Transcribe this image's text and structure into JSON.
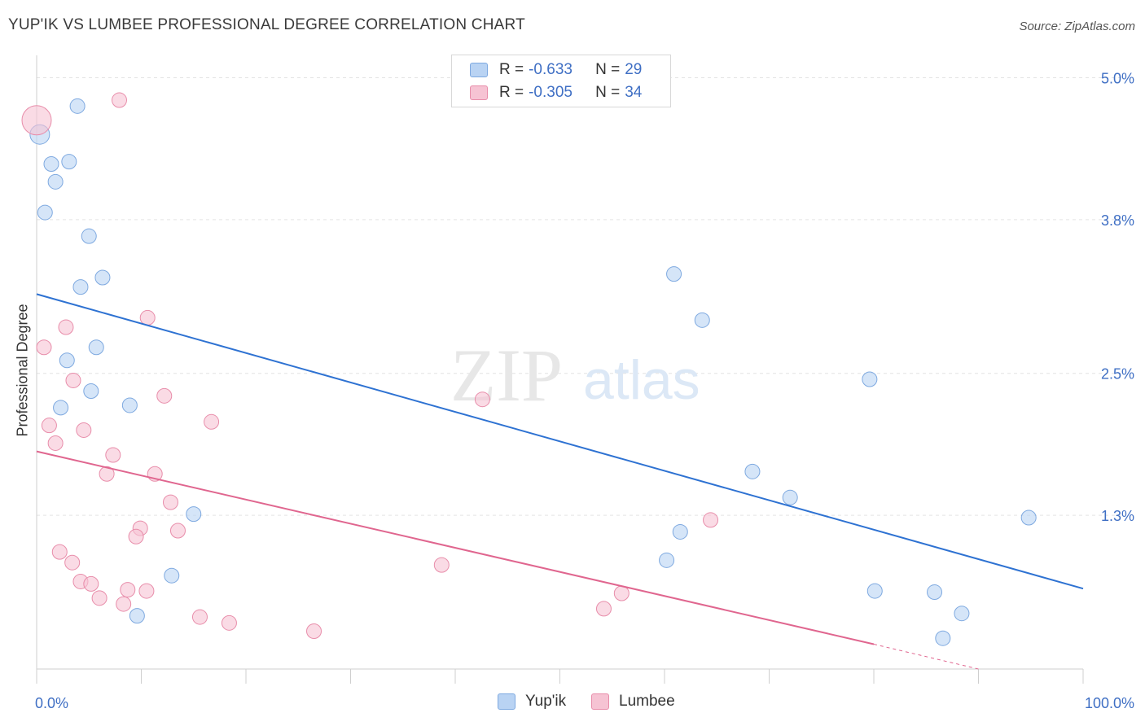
{
  "title": "YUP'IK VS LUMBEE PROFESSIONAL DEGREE CORRELATION CHART",
  "source": "Source: ZipAtlas.com",
  "watermark": {
    "part1": "ZIP",
    "part2": "atlas"
  },
  "colors": {
    "yupik_fill": "#b9d3f3",
    "yupik_stroke": "#7ea9e0",
    "yupik_line": "#2e72d2",
    "lumbee_fill": "#f6c3d3",
    "lumbee_stroke": "#e88daa",
    "lumbee_line": "#e0668f",
    "axis_label": "#3f6fc4",
    "grid": "#e3e3e3"
  },
  "legend": {
    "rows": [
      {
        "r_label": "R =",
        "r_value": "-0.633",
        "n_label": "N =",
        "n_value": "29"
      },
      {
        "r_label": "R =",
        "r_value": "-0.305",
        "n_label": "N =",
        "n_value": "34"
      }
    ]
  },
  "chart_data": {
    "type": "scatter",
    "title": "YUP'IK VS LUMBEE PROFESSIONAL DEGREE CORRELATION CHART",
    "xlabel": "",
    "ylabel": "Professional Degree",
    "xlim": [
      0,
      100
    ],
    "ylim": [
      0,
      5.12
    ],
    "x_tick_labels": [
      "0.0%",
      "100.0%"
    ],
    "y_ticks": [
      1.3,
      2.5,
      3.8,
      5.0
    ],
    "y_tick_labels": [
      "1.3%",
      "2.5%",
      "3.8%",
      "5.0%"
    ],
    "grid": true,
    "series": [
      {
        "name": "Yup'ik",
        "r": -0.633,
        "n": 29,
        "trend": {
          "x0": 0,
          "y0": 3.17,
          "x1": 100,
          "y1": 0.68
        },
        "points": [
          {
            "x": 0.3,
            "y": 4.52,
            "s": 12
          },
          {
            "x": 1.4,
            "y": 4.27,
            "s": 9
          },
          {
            "x": 1.8,
            "y": 4.12,
            "s": 9
          },
          {
            "x": 3.1,
            "y": 4.29,
            "s": 9
          },
          {
            "x": 3.9,
            "y": 4.76,
            "s": 9
          },
          {
            "x": 0.8,
            "y": 3.86,
            "s": 9
          },
          {
            "x": 5.0,
            "y": 3.66,
            "s": 9
          },
          {
            "x": 4.2,
            "y": 3.23,
            "s": 9
          },
          {
            "x": 6.3,
            "y": 3.31,
            "s": 9
          },
          {
            "x": 2.9,
            "y": 2.61,
            "s": 9
          },
          {
            "x": 5.7,
            "y": 2.72,
            "s": 9
          },
          {
            "x": 5.2,
            "y": 2.35,
            "s": 9
          },
          {
            "x": 2.3,
            "y": 2.21,
            "s": 9
          },
          {
            "x": 8.9,
            "y": 2.23,
            "s": 9
          },
          {
            "x": 15.0,
            "y": 1.31,
            "s": 9
          },
          {
            "x": 12.9,
            "y": 0.79,
            "s": 9
          },
          {
            "x": 9.6,
            "y": 0.45,
            "s": 9
          },
          {
            "x": 60.9,
            "y": 3.34,
            "s": 9
          },
          {
            "x": 63.6,
            "y": 2.95,
            "s": 9
          },
          {
            "x": 79.6,
            "y": 2.45,
            "s": 9
          },
          {
            "x": 68.4,
            "y": 1.67,
            "s": 9
          },
          {
            "x": 72.0,
            "y": 1.45,
            "s": 9
          },
          {
            "x": 61.5,
            "y": 1.16,
            "s": 9
          },
          {
            "x": 60.2,
            "y": 0.92,
            "s": 9
          },
          {
            "x": 80.1,
            "y": 0.66,
            "s": 9
          },
          {
            "x": 85.8,
            "y": 0.65,
            "s": 9
          },
          {
            "x": 88.4,
            "y": 0.47,
            "s": 9
          },
          {
            "x": 86.6,
            "y": 0.26,
            "s": 9
          },
          {
            "x": 94.8,
            "y": 1.28,
            "s": 9
          }
        ]
      },
      {
        "name": "Lumbee",
        "r": -0.305,
        "n": 34,
        "trend": {
          "x0": 0,
          "y0": 1.84,
          "x1": 80,
          "y1": 0.21,
          "dash_to_x": 90,
          "dash_to_y": 0.0
        },
        "points": [
          {
            "x": 0.0,
            "y": 4.64,
            "s": 18
          },
          {
            "x": 7.9,
            "y": 4.81,
            "s": 9
          },
          {
            "x": 0.7,
            "y": 2.72,
            "s": 9
          },
          {
            "x": 2.8,
            "y": 2.89,
            "s": 9
          },
          {
            "x": 3.5,
            "y": 2.44,
            "s": 9
          },
          {
            "x": 1.2,
            "y": 2.06,
            "s": 9
          },
          {
            "x": 1.8,
            "y": 1.91,
            "s": 9
          },
          {
            "x": 4.5,
            "y": 2.02,
            "s": 9
          },
          {
            "x": 7.3,
            "y": 1.81,
            "s": 9
          },
          {
            "x": 6.7,
            "y": 1.65,
            "s": 9
          },
          {
            "x": 10.6,
            "y": 2.97,
            "s": 9
          },
          {
            "x": 12.2,
            "y": 2.31,
            "s": 9
          },
          {
            "x": 16.7,
            "y": 2.09,
            "s": 9
          },
          {
            "x": 11.3,
            "y": 1.65,
            "s": 9
          },
          {
            "x": 12.8,
            "y": 1.41,
            "s": 9
          },
          {
            "x": 13.5,
            "y": 1.17,
            "s": 9
          },
          {
            "x": 9.9,
            "y": 1.19,
            "s": 9
          },
          {
            "x": 9.5,
            "y": 1.12,
            "s": 9
          },
          {
            "x": 2.2,
            "y": 0.99,
            "s": 9
          },
          {
            "x": 3.4,
            "y": 0.9,
            "s": 9
          },
          {
            "x": 4.2,
            "y": 0.74,
            "s": 9
          },
          {
            "x": 5.2,
            "y": 0.72,
            "s": 9
          },
          {
            "x": 6.0,
            "y": 0.6,
            "s": 9
          },
          {
            "x": 8.7,
            "y": 0.67,
            "s": 9
          },
          {
            "x": 10.5,
            "y": 0.66,
            "s": 9
          },
          {
            "x": 8.3,
            "y": 0.55,
            "s": 9
          },
          {
            "x": 15.6,
            "y": 0.44,
            "s": 9
          },
          {
            "x": 18.4,
            "y": 0.39,
            "s": 9
          },
          {
            "x": 26.5,
            "y": 0.32,
            "s": 9
          },
          {
            "x": 42.6,
            "y": 2.28,
            "s": 9
          },
          {
            "x": 38.7,
            "y": 0.88,
            "s": 9
          },
          {
            "x": 64.4,
            "y": 1.26,
            "s": 9
          },
          {
            "x": 55.9,
            "y": 0.64,
            "s": 9
          },
          {
            "x": 54.2,
            "y": 0.51,
            "s": 9
          }
        ]
      }
    ]
  }
}
